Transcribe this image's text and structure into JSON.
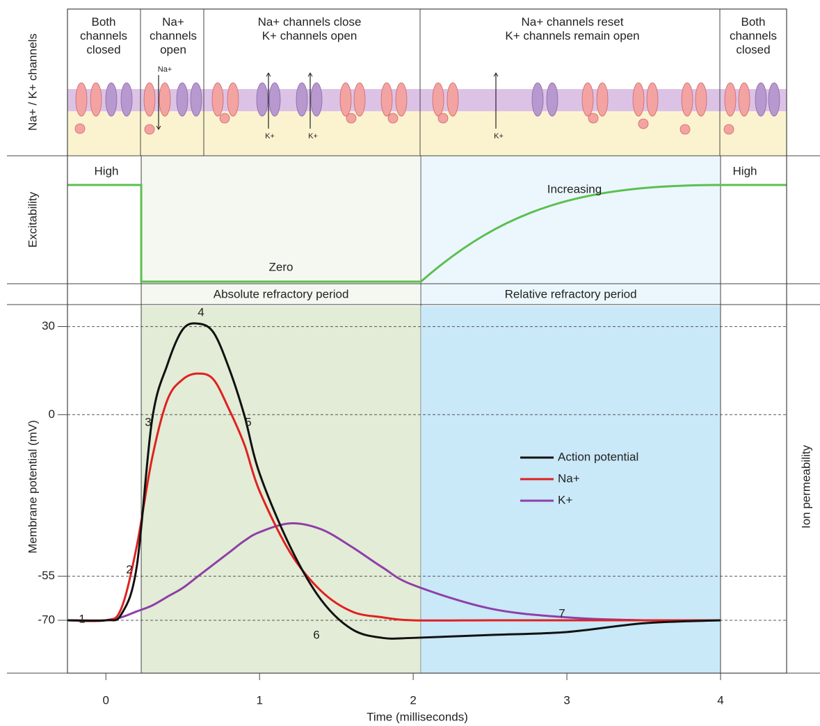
{
  "panels": {
    "channels_label": "Na+ / K+ channels",
    "columns": [
      "Both\nchannels\nclosed",
      "Na+\nchannels\nopen",
      "Na+ channels close\nK+ channels open",
      "Na+ channels reset\nK+ channels remain open",
      "Both\nchannels\nclosed"
    ],
    "ion_labels": [
      "Na+",
      "K+",
      "K+",
      "K+"
    ],
    "excitability_label": "Excitability",
    "excitability_levels": [
      "High",
      "Zero",
      "Increasing",
      "High"
    ]
  },
  "chart_data": {
    "type": "line",
    "x_label": "Time (milliseconds)",
    "y_label": "Membrane potential (mV)",
    "y2_label": "Ion permeability",
    "x": [
      -0.25,
      0,
      0.1,
      0.2,
      0.3,
      0.4,
      0.5,
      0.6,
      0.7,
      0.8,
      0.9,
      1.0,
      1.2,
      1.4,
      1.6,
      1.8,
      2.0,
      2.5,
      3.0,
      3.5,
      4.0
    ],
    "series": [
      {
        "name": "Action potential",
        "color": "#111111",
        "values": [
          -70,
          -70,
          -68,
          -52,
          -2,
          17,
          29,
          31,
          28,
          16,
          0,
          -20,
          -45,
          -63,
          -73,
          -76,
          -76,
          -75,
          -74,
          -71,
          -70
        ]
      },
      {
        "name": "Na+",
        "color": "#e02020",
        "values": [
          -70,
          -70,
          -66,
          -45,
          -15,
          5,
          12,
          14,
          12,
          2,
          -10,
          -26,
          -47,
          -60,
          -67,
          -69,
          -70,
          -70,
          -70,
          -70,
          -70
        ]
      },
      {
        "name": "K+",
        "color": "#8e3fa8",
        "values": [
          -70,
          -70,
          -69,
          -67,
          -65,
          -62,
          -59,
          -55,
          -51,
          -47,
          -43,
          -40,
          -37,
          -39,
          -45,
          -52,
          -58,
          -66,
          -69,
          -70,
          -70
        ]
      }
    ],
    "periods": [
      {
        "label": "Absolute refractory period",
        "start": 0.23,
        "end": 2.05,
        "color": "#e3ecd6"
      },
      {
        "label": "Relative refractory period",
        "start": 2.05,
        "end": 4.0,
        "color": "#c9e8f8"
      }
    ],
    "annotations": [
      "1",
      "2",
      "3",
      "4",
      "5",
      "6",
      "7"
    ],
    "xlim": [
      -0.25,
      4.43
    ],
    "ylim": [
      -88,
      37
    ],
    "xticks": [
      0,
      1,
      2,
      3,
      4
    ],
    "yticks": [
      30,
      0,
      -55,
      -70
    ],
    "grid": true
  }
}
